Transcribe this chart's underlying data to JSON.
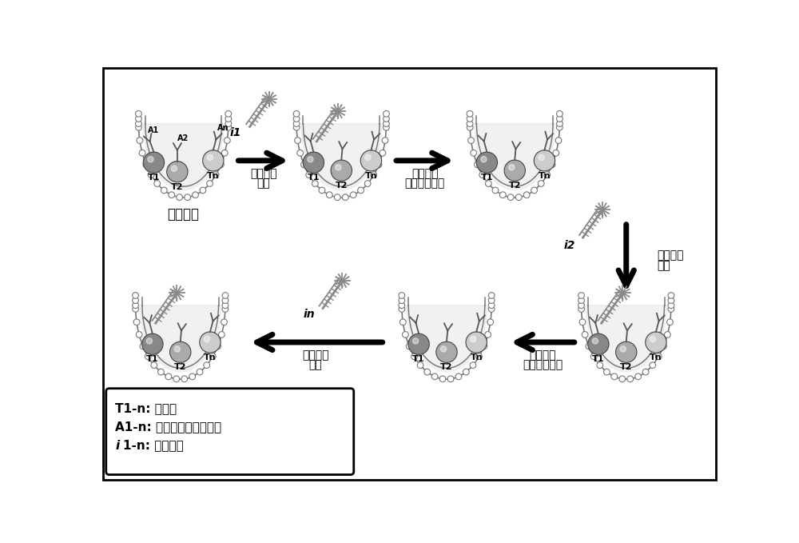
{
  "background_color": "#ffffff",
  "legend_text_1": "T1-n: 靶标；",
  "legend_text_2": "A1-n: 寡核苷酸标记抗体；",
  "legend_text_3_prefix": "i",
  "legend_text_3_suffix": "1-n: 荧光探针",
  "label_cell": "细胞样本",
  "label_arrow1_l1": "荧光探针",
  "label_arrow1_l2": "杂交",
  "label_arrow2_l1": "甘油溶液",
  "label_arrow2_l2": "去除荧光探针",
  "label_arrow3_l1": "荧光探针",
  "label_arrow3_l2": "杂交",
  "label_arrow4_l1": "甘油溶液",
  "label_arrow4_l2": "去除荧光探针",
  "label_arrow5_l1": "荧光探针",
  "label_arrow5_l2": "杂交",
  "probe_i1": "i1",
  "probe_i2": "i2",
  "probe_in": "in",
  "target_labels": [
    "T1",
    "T2",
    "Tn"
  ],
  "antibody_labels_cell1": [
    "A1",
    "A2",
    "An"
  ]
}
